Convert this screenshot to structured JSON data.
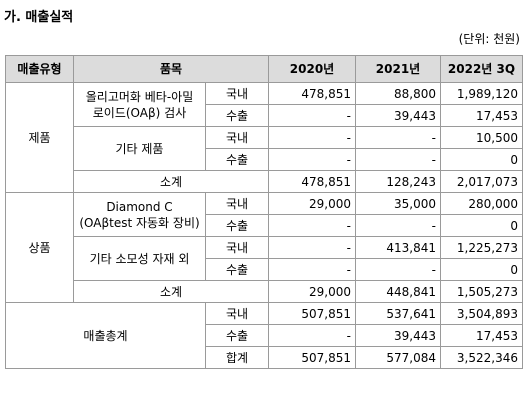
{
  "header": {
    "title": "가. 매출실적",
    "unit": "(단위: 천원)"
  },
  "table": {
    "columns": [
      "매출유형",
      "품목",
      "2020년",
      "2021년",
      "2022년 3Q"
    ],
    "rows": [
      [
        [
          "제품"
        ],
        [
          "올리고머화 베타-아밀",
          "로이드(OAβ) 검사"
        ],
        "국내",
        "478,851",
        "88,800",
        "1,989,120"
      ],
      [
        "수출",
        "-",
        "39,443",
        "17,453"
      ],
      [
        [
          "기타 제품"
        ],
        "국내",
        "-",
        "-",
        "10,500"
      ],
      [
        "수출",
        "-",
        "-",
        "0"
      ],
      [
        "소계",
        "478,851",
        "128,243",
        "2,017,073"
      ],
      [
        [
          "상품"
        ],
        [
          "Diamond C",
          "(OAβtest 자동화 장비)"
        ],
        "국내",
        "29,000",
        "35,000",
        "280,000"
      ],
      [
        "수출",
        "-",
        "-",
        "0"
      ],
      [
        [
          "기타 소모성 자재 외"
        ],
        "국내",
        "-",
        "413,841",
        "1,225,273"
      ],
      [
        "수출",
        "-",
        "-",
        "0"
      ],
      [
        "소계",
        "29,000",
        "448,841",
        "1,505,273"
      ],
      [
        [
          "매출총계"
        ],
        "국내",
        "507,851",
        "537,641",
        "3,504,893"
      ],
      [
        "수출",
        "-",
        "39,443",
        "17,453"
      ],
      [
        "합계",
        "507,851",
        "577,084",
        "3,522,346"
      ]
    ]
  }
}
